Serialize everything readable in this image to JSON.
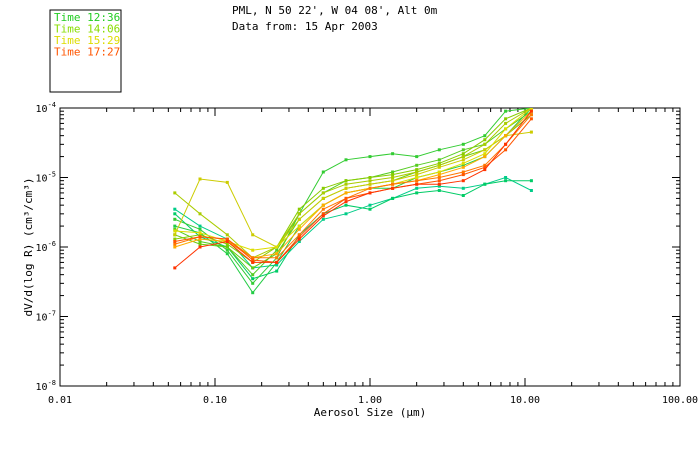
{
  "chart_data": {
    "type": "line",
    "title": "PML, N 50 22', W 04 08', Alt 0m",
    "subtitle": "Data from: 15 Apr 2003",
    "xlabel": "Aerosol Size (μm)",
    "ylabel": "dV/d(log R) (cm³/cm³)",
    "xscale": "log",
    "yscale": "log",
    "xlim": [
      0.01,
      100
    ],
    "ylim": [
      1e-08,
      0.0001
    ],
    "x_ticks": [
      0.01,
      0.1,
      1,
      10,
      100
    ],
    "x_tick_labels": [
      "0.01",
      "0.10",
      "1.00",
      "10.00",
      "100.00"
    ],
    "y_ticks": [
      1e-08,
      1e-07,
      1e-06,
      1e-05,
      0.0001
    ],
    "y_tick_labels": [
      [
        "10",
        "-8"
      ],
      [
        "10",
        "-7"
      ],
      [
        "10",
        "-6"
      ],
      [
        "10",
        "-5"
      ],
      [
        "10",
        "-4"
      ]
    ],
    "grid": false,
    "legend_position": "top-left box",
    "legend": [
      {
        "label": "Time 12:36",
        "color": "#22cc22"
      },
      {
        "label": "Time 14:06",
        "color": "#88dd00"
      },
      {
        "label": "Time 15:29",
        "color": "#dddd00"
      },
      {
        "label": "Time 17:27",
        "color": "#ff5500"
      }
    ],
    "x": [
      0.055,
      0.08,
      0.12,
      0.175,
      0.25,
      0.35,
      0.5,
      0.7,
      1.0,
      1.4,
      2.0,
      2.8,
      4.0,
      5.5,
      7.5,
      11.0
    ],
    "series": [
      {
        "color": "#00cc88",
        "values": [
          3.5e-06,
          2e-06,
          1.3e-06,
          5e-07,
          5.5e-07,
          1.2e-06,
          2.5e-06,
          3e-06,
          4e-06,
          5e-06,
          7e-06,
          7.5e-06,
          7e-06,
          8e-06,
          1e-05,
          6.5e-06
        ]
      },
      {
        "color": "#00cc66",
        "values": [
          3e-06,
          1.4e-06,
          1e-06,
          3.5e-07,
          4.5e-07,
          1.5e-06,
          3e-06,
          4e-06,
          3.5e-06,
          5e-06,
          6e-06,
          6.5e-06,
          5.5e-06,
          8e-06,
          9e-06,
          9e-06
        ]
      },
      {
        "color": "#22cc44",
        "values": [
          2e-06,
          1.6e-06,
          8e-07,
          2.2e-07,
          6e-07,
          2e-06,
          4e-06,
          6e-06,
          7e-06,
          7e-06,
          1e-05,
          1.2e-05,
          1.5e-05,
          2e-05,
          4e-05,
          0.0001
        ]
      },
      {
        "color": "#33cc33",
        "values": [
          2.5e-06,
          1.8e-06,
          9e-07,
          3e-07,
          7e-07,
          3e-06,
          1.2e-05,
          1.8e-05,
          2e-05,
          2.2e-05,
          2e-05,
          2.5e-05,
          3e-05,
          4e-05,
          9e-05,
          0.0001
        ]
      },
      {
        "color": "#55cc22",
        "values": [
          1.8e-06,
          1.2e-06,
          1e-06,
          4e-07,
          9e-07,
          3e-06,
          6e-06,
          9e-06,
          1e-05,
          1.2e-05,
          1.5e-05,
          1.8e-05,
          2.5e-05,
          3e-05,
          5e-05,
          9e-05
        ]
      },
      {
        "color": "#66cc11",
        "values": [
          1.5e-06,
          1.1e-06,
          1e-06,
          5e-07,
          8e-07,
          2.5e-06,
          5e-06,
          7e-06,
          8e-06,
          9e-06,
          1.2e-05,
          1.5e-05,
          2e-05,
          2.5e-05,
          4e-05,
          8e-05
        ]
      },
      {
        "color": "#88cc00",
        "values": [
          1.3e-06,
          1.5e-06,
          1.1e-06,
          6e-07,
          1e-06,
          3.5e-06,
          7e-06,
          9e-06,
          1e-05,
          1.1e-05,
          1.3e-05,
          1.6e-05,
          2.2e-05,
          3.5e-05,
          7e-05,
          0.0001
        ]
      },
      {
        "color": "#aacc00",
        "values": [
          6e-06,
          3e-06,
          1.5e-06,
          7e-07,
          1e-06,
          3e-06,
          6e-06,
          8e-06,
          9e-06,
          1e-05,
          1.2e-05,
          1.5e-05,
          2e-05,
          3e-05,
          6e-05,
          0.0001
        ]
      },
      {
        "color": "#cccc00",
        "values": [
          1.5e-06,
          9.5e-06,
          8.5e-06,
          1.5e-06,
          1e-06,
          2.5e-06,
          5e-06,
          7e-06,
          8e-06,
          9e-06,
          1.1e-05,
          1.4e-05,
          1.8e-05,
          2.5e-05,
          4e-05,
          4.5e-05
        ]
      },
      {
        "color": "#dddd00",
        "values": [
          1.7e-06,
          1.6e-06,
          1.2e-06,
          9e-07,
          1e-06,
          2e-06,
          4e-06,
          6e-06,
          7e-06,
          8e-06,
          1e-05,
          1.2e-05,
          1.6e-05,
          2.2e-05,
          5e-05,
          0.0001
        ]
      },
      {
        "color": "#ffaa00",
        "values": [
          1e-06,
          1.3e-06,
          1.2e-06,
          7e-07,
          8e-07,
          1.8e-06,
          4e-06,
          6e-06,
          7e-06,
          8e-06,
          9e-06,
          1.1e-05,
          1.4e-05,
          2e-05,
          4e-05,
          9e-05
        ]
      },
      {
        "color": "#ff7700",
        "values": [
          1.1e-06,
          1.4e-06,
          1.3e-06,
          7e-07,
          7e-07,
          1.5e-06,
          3.5e-06,
          5e-06,
          7e-06,
          8e-06,
          9e-06,
          1e-05,
          1.2e-05,
          1.5e-05,
          3e-05,
          8e-05
        ]
      },
      {
        "color": "#ff5500",
        "values": [
          1.2e-06,
          1.4e-06,
          1.3e-06,
          6.5e-07,
          6e-07,
          1.4e-06,
          3e-06,
          5e-06,
          6e-06,
          7e-06,
          8e-06,
          9e-06,
          1.1e-05,
          1.4e-05,
          2.5e-05,
          7e-05
        ]
      },
      {
        "color": "#ff3300",
        "values": [
          5e-07,
          1e-06,
          1.2e-06,
          6e-07,
          6e-07,
          1.3e-06,
          2.8e-06,
          4.5e-06,
          6e-06,
          7e-06,
          8e-06,
          8e-06,
          9e-06,
          1.3e-05,
          3e-05,
          9e-05
        ]
      }
    ]
  }
}
